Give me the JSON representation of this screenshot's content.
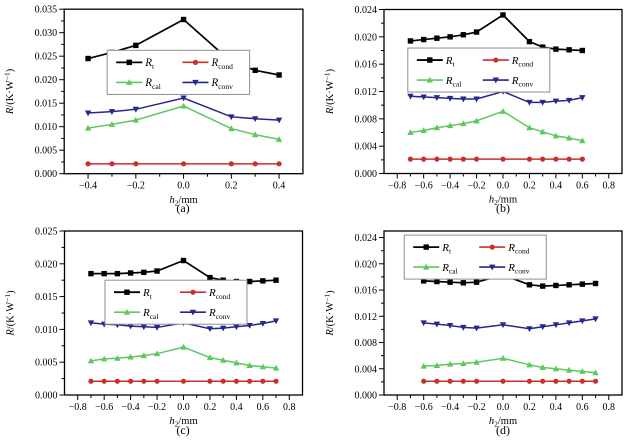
{
  "figure": {
    "background": "#ffffff",
    "ylabel_parts": {
      "var": "R",
      "mid": "/(K·W",
      "sup": "−1",
      "end": ")"
    },
    "xlabel_parts": {
      "var": "h",
      "sub": "2",
      "rest": "/mm"
    },
    "series_meta": [
      {
        "key": "Rt",
        "label_main": "R",
        "label_sub": "t",
        "color": "#000000",
        "marker": "square"
      },
      {
        "key": "Rcond",
        "label_main": "R",
        "label_sub": "cond",
        "color": "#c9302c",
        "marker": "circle"
      },
      {
        "key": "Rcal",
        "label_main": "R",
        "label_sub": "cal",
        "color": "#5dc85d",
        "marker": "triangle-up"
      },
      {
        "key": "Rconv",
        "label_main": "R",
        "label_sub": "conv",
        "color": "#26268e",
        "marker": "triangle-down"
      }
    ]
  },
  "chart_data": [
    {
      "id": "a",
      "type": "line",
      "caption": "(a)",
      "xlabel": "h2/mm",
      "ylabel": "R/(K·W−1)",
      "xlim": [
        -0.5,
        0.5
      ],
      "ylim": [
        0,
        0.035
      ],
      "xtick_values": [
        -0.4,
        -0.2,
        0.0,
        0.2,
        0.4
      ],
      "xtick_labels": [
        "−0.4",
        "−0.2",
        "0.0",
        "0.2",
        "0.4"
      ],
      "ytick_values": [
        0.0,
        0.005,
        0.01,
        0.015,
        0.02,
        0.025,
        0.03,
        0.035
      ],
      "ytick_labels": [
        "0.000",
        "0.005",
        "0.010",
        "0.015",
        "0.020",
        "0.025",
        "0.030",
        "0.035"
      ],
      "x": [
        -0.4,
        -0.3,
        -0.2,
        0.0,
        0.2,
        0.3,
        0.4
      ],
      "series": [
        {
          "name": "Rcond",
          "values": [
            0.0021,
            0.0021,
            0.0021,
            0.0021,
            0.0021,
            0.0021,
            0.0021
          ]
        },
        {
          "name": "Rcal",
          "values": [
            0.0097,
            0.0105,
            0.0114,
            0.0144,
            0.0096,
            0.0083,
            0.0073
          ]
        },
        {
          "name": "Rconv",
          "values": [
            0.0129,
            0.0132,
            0.0137,
            0.0161,
            0.0121,
            0.0117,
            0.0114
          ]
        },
        {
          "name": "Rt",
          "values": [
            0.0245,
            0.0258,
            0.0273,
            0.0328,
            0.0238,
            0.022,
            0.021
          ]
        }
      ],
      "legend_pos": [
        0.18,
        0.25
      ]
    },
    {
      "id": "b",
      "type": "line",
      "caption": "(b)",
      "xlabel": "h2/mm",
      "ylabel": "R/(K·W−1)",
      "xlim": [
        -0.9,
        0.9
      ],
      "ylim": [
        0,
        0.024
      ],
      "xtick_values": [
        -0.8,
        -0.6,
        -0.4,
        -0.2,
        0.0,
        0.2,
        0.4,
        0.6,
        0.8
      ],
      "xtick_labels": [
        "−0.8",
        "−0.6",
        "−0.4",
        "−0.2",
        "0.0",
        "0.2",
        "0.4",
        "0.6",
        "0.8"
      ],
      "ytick_values": [
        0.0,
        0.004,
        0.008,
        0.012,
        0.016,
        0.02,
        0.024
      ],
      "ytick_labels": [
        "0.000",
        "0.004",
        "0.008",
        "0.012",
        "0.016",
        "0.020",
        "0.024"
      ],
      "x": [
        -0.7,
        -0.6,
        -0.5,
        -0.4,
        -0.3,
        -0.2,
        0.0,
        0.2,
        0.3,
        0.4,
        0.5,
        0.6
      ],
      "series": [
        {
          "name": "Rcond",
          "values": [
            0.0021,
            0.0021,
            0.0021,
            0.0021,
            0.0021,
            0.0021,
            0.0021,
            0.0021,
            0.0021,
            0.0021,
            0.0021,
            0.0021
          ]
        },
        {
          "name": "Rcal",
          "values": [
            0.006,
            0.0063,
            0.0067,
            0.007,
            0.0073,
            0.0077,
            0.0091,
            0.0067,
            0.0061,
            0.0055,
            0.0052,
            0.0048
          ]
        },
        {
          "name": "Rconv",
          "values": [
            0.0113,
            0.0112,
            0.0111,
            0.011,
            0.0109,
            0.0109,
            0.012,
            0.0104,
            0.0104,
            0.0106,
            0.0107,
            0.0111
          ]
        },
        {
          "name": "Rt",
          "values": [
            0.0194,
            0.0196,
            0.0198,
            0.02,
            0.0203,
            0.0207,
            0.0232,
            0.0193,
            0.0185,
            0.0182,
            0.0181,
            0.018
          ]
        }
      ],
      "legend_pos": [
        0.1,
        0.235
      ]
    },
    {
      "id": "c",
      "type": "line",
      "caption": "(c)",
      "xlabel": "h2/mm",
      "ylabel": "R/(K·W−1)",
      "xlim": [
        -0.9,
        0.9
      ],
      "ylim": [
        0,
        0.025
      ],
      "xtick_values": [
        -0.8,
        -0.6,
        -0.4,
        -0.2,
        0.0,
        0.2,
        0.4,
        0.6,
        0.8
      ],
      "xtick_labels": [
        "−0.8",
        "−0.6",
        "−0.4",
        "−0.2",
        "0.0",
        "0.2",
        "0.4",
        "0.6",
        "0.8"
      ],
      "ytick_values": [
        0.0,
        0.005,
        0.01,
        0.015,
        0.02,
        0.025
      ],
      "ytick_labels": [
        "0.000",
        "0.005",
        "0.010",
        "0.015",
        "0.020",
        "0.025"
      ],
      "x": [
        -0.7,
        -0.6,
        -0.5,
        -0.4,
        -0.3,
        -0.2,
        0.0,
        0.2,
        0.3,
        0.4,
        0.5,
        0.6,
        0.7
      ],
      "series": [
        {
          "name": "Rcond",
          "values": [
            0.0021,
            0.0021,
            0.0021,
            0.0021,
            0.0021,
            0.0021,
            0.0021,
            0.0021,
            0.0021,
            0.0021,
            0.0021,
            0.0021,
            0.0021
          ]
        },
        {
          "name": "Rcal",
          "values": [
            0.0052,
            0.0055,
            0.0056,
            0.0058,
            0.006,
            0.0063,
            0.0073,
            0.0057,
            0.0053,
            0.0049,
            0.0045,
            0.0043,
            0.0041
          ]
        },
        {
          "name": "Rconv",
          "values": [
            0.011,
            0.0108,
            0.0107,
            0.0105,
            0.0104,
            0.0103,
            0.011,
            0.0101,
            0.0102,
            0.0104,
            0.0106,
            0.0109,
            0.0113
          ]
        },
        {
          "name": "Rt",
          "values": [
            0.0185,
            0.0185,
            0.0185,
            0.0186,
            0.0187,
            0.0189,
            0.0205,
            0.0179,
            0.0175,
            0.0173,
            0.0173,
            0.0174,
            0.0175
          ]
        }
      ],
      "legend_pos": [
        0.17,
        0.3
      ]
    },
    {
      "id": "d",
      "type": "line",
      "caption": "(d)",
      "xlabel": "h2/mm",
      "ylabel": "R/(K·W−1)",
      "xlim": [
        -0.9,
        0.9
      ],
      "ylim": [
        0,
        0.025
      ],
      "xtick_values": [
        -0.8,
        -0.6,
        -0.4,
        -0.2,
        0.0,
        0.2,
        0.4,
        0.6,
        0.8
      ],
      "xtick_labels": [
        "−0.8",
        "−0.6",
        "−0.4",
        "−0.2",
        "0.0",
        "0.2",
        "0.4",
        "0.6",
        "0.8"
      ],
      "ytick_values": [
        0.0,
        0.004,
        0.008,
        0.012,
        0.016,
        0.02,
        0.024
      ],
      "ytick_labels": [
        "0.000",
        "0.004",
        "0.008",
        "0.012",
        "0.016",
        "0.020",
        "0.024"
      ],
      "x": [
        -0.6,
        -0.5,
        -0.4,
        -0.3,
        -0.2,
        0.0,
        0.2,
        0.3,
        0.4,
        0.5,
        0.6,
        0.7
      ],
      "series": [
        {
          "name": "Rcond",
          "values": [
            0.0021,
            0.0021,
            0.0021,
            0.0021,
            0.0021,
            0.0021,
            0.0021,
            0.0021,
            0.0021,
            0.0021,
            0.0021,
            0.0021
          ]
        },
        {
          "name": "Rcal",
          "values": [
            0.0044,
            0.0045,
            0.0047,
            0.0048,
            0.005,
            0.0056,
            0.0046,
            0.0042,
            0.004,
            0.0038,
            0.0036,
            0.0034
          ]
        },
        {
          "name": "Rconv",
          "values": [
            0.011,
            0.0108,
            0.0106,
            0.0103,
            0.0102,
            0.0107,
            0.0101,
            0.0104,
            0.0107,
            0.011,
            0.0113,
            0.0116
          ]
        },
        {
          "name": "Rt",
          "values": [
            0.0174,
            0.0173,
            0.0172,
            0.0171,
            0.0172,
            0.0183,
            0.0168,
            0.0166,
            0.0167,
            0.0168,
            0.0169,
            0.017
          ]
        }
      ],
      "legend_pos": [
        0.085,
        0.025
      ]
    }
  ]
}
